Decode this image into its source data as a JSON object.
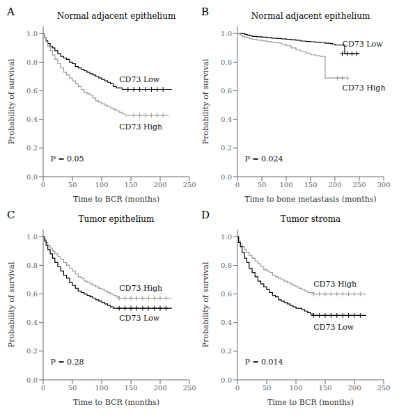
{
  "chart_data": [
    {
      "type": "line",
      "panel_label": "A",
      "title": "Normal adjacent epithelium",
      "x_label": "Time to BCR (months)",
      "y_label": "Probability of survival",
      "annotations": [
        {
          "text": "P = 0.05"
        }
      ],
      "xlim": [
        0,
        250
      ],
      "xticks": [
        0,
        50,
        100,
        150,
        200,
        250
      ],
      "ylim": [
        0.0,
        1.05
      ],
      "yticks": [
        {
          "value": 0.0,
          "label": "0.0"
        },
        0.2,
        0.4,
        0.6,
        0.8,
        {
          "value": 1.0,
          "label": "1.0"
        }
      ],
      "series": [
        {
          "name": "CD73 Low",
          "color": "#000000",
          "line_style": "step",
          "marker": "+",
          "x": [
            0,
            2,
            5,
            8,
            12,
            16,
            20,
            25,
            30,
            35,
            40,
            45,
            50,
            55,
            60,
            65,
            70,
            75,
            80,
            85,
            90,
            95,
            100,
            105,
            110,
            115,
            120,
            125,
            130,
            135,
            140,
            150,
            160,
            170,
            180,
            190,
            200,
            215,
            220
          ],
          "values": [
            1.0,
            0.97,
            0.95,
            0.93,
            0.91,
            0.9,
            0.88,
            0.86,
            0.84,
            0.83,
            0.82,
            0.8,
            0.79,
            0.77,
            0.76,
            0.75,
            0.74,
            0.73,
            0.72,
            0.71,
            0.7,
            0.69,
            0.68,
            0.67,
            0.66,
            0.65,
            0.63,
            0.62,
            0.62,
            0.61,
            0.61,
            0.61,
            0.61,
            0.61,
            0.61,
            0.61,
            0.61,
            0.61,
            0.61
          ],
          "censor_x": [
            145,
            155,
            165,
            175,
            185,
            195,
            205
          ],
          "censor_y": [
            0.61,
            0.61,
            0.61,
            0.61,
            0.61,
            0.61,
            0.61
          ],
          "label_x": 130,
          "label_y": 0.68
        },
        {
          "name": "CD73 High",
          "color": "#999999",
          "line_style": "step",
          "marker": "+",
          "x": [
            0,
            2,
            5,
            8,
            12,
            16,
            20,
            25,
            30,
            35,
            40,
            45,
            50,
            55,
            60,
            65,
            70,
            75,
            80,
            85,
            90,
            95,
            100,
            105,
            110,
            115,
            120,
            125,
            130,
            135,
            140,
            145,
            150,
            155,
            160,
            170,
            180,
            200,
            215
          ],
          "values": [
            1.0,
            0.97,
            0.94,
            0.91,
            0.88,
            0.85,
            0.82,
            0.79,
            0.76,
            0.73,
            0.71,
            0.69,
            0.67,
            0.65,
            0.63,
            0.61,
            0.59,
            0.58,
            0.57,
            0.55,
            0.53,
            0.52,
            0.51,
            0.5,
            0.49,
            0.48,
            0.47,
            0.46,
            0.45,
            0.44,
            0.43,
            0.43,
            0.43,
            0.43,
            0.43,
            0.43,
            0.43,
            0.43,
            0.43
          ],
          "censor_x": [
            155,
            165,
            175,
            185,
            195,
            205
          ],
          "censor_y": [
            0.43,
            0.43,
            0.43,
            0.43,
            0.43,
            0.43
          ],
          "label_x": 130,
          "label_y": 0.35
        }
      ]
    },
    {
      "type": "line",
      "panel_label": "B",
      "title": "Normal adjacent epithelium",
      "x_label": "Time to bone metastasis (months)",
      "y_label": "Probability of survival",
      "annotations": [
        {
          "text": "P = 0.024"
        }
      ],
      "xlim": [
        0,
        300
      ],
      "xticks": [
        0,
        50,
        100,
        150,
        200,
        250,
        300
      ],
      "ylim": [
        0.0,
        1.05
      ],
      "yticks": [
        {
          "value": 0.0,
          "label": "0.0"
        },
        0.2,
        0.4,
        0.6,
        0.8,
        {
          "value": 1.0,
          "label": "1.0"
        }
      ],
      "series": [
        {
          "name": "CD73 Low",
          "color": "#000000",
          "line_style": "step",
          "marker": "+",
          "x": [
            0,
            5,
            10,
            15,
            20,
            25,
            30,
            40,
            50,
            60,
            70,
            80,
            90,
            100,
            110,
            120,
            130,
            140,
            150,
            160,
            170,
            180,
            190,
            195,
            200,
            210,
            220,
            230,
            240,
            250
          ],
          "values": [
            1.0,
            1.0,
            1.0,
            0.995,
            0.99,
            0.985,
            0.98,
            0.978,
            0.975,
            0.972,
            0.968,
            0.966,
            0.963,
            0.96,
            0.957,
            0.953,
            0.948,
            0.945,
            0.943,
            0.94,
            0.937,
            0.933,
            0.93,
            0.926,
            0.92,
            0.92,
            0.86,
            0.86,
            0.86,
            0.86
          ],
          "censor_x": [
            215,
            225,
            235,
            245
          ],
          "censor_y": [
            0.86,
            0.86,
            0.86,
            0.86
          ],
          "label_x": 215,
          "label_y": 0.93
        },
        {
          "name": "CD73 High",
          "color": "#999999",
          "line_style": "step",
          "marker": "+",
          "x": [
            0,
            5,
            10,
            15,
            20,
            25,
            30,
            40,
            50,
            60,
            70,
            80,
            90,
            100,
            110,
            120,
            130,
            140,
            150,
            160,
            165,
            170,
            175,
            180,
            185,
            190,
            195,
            200,
            210,
            220
          ],
          "values": [
            1.0,
            0.99,
            0.98,
            0.975,
            0.97,
            0.965,
            0.96,
            0.955,
            0.95,
            0.945,
            0.94,
            0.935,
            0.925,
            0.915,
            0.9,
            0.886,
            0.875,
            0.863,
            0.852,
            0.845,
            0.845,
            0.84,
            0.84,
            0.69,
            0.69,
            0.69,
            0.69,
            0.69,
            0.69,
            0.69
          ],
          "censor_x": [
            205,
            215,
            225
          ],
          "censor_y": [
            0.69,
            0.69,
            0.69
          ],
          "label_x": 215,
          "label_y": 0.62
        }
      ]
    },
    {
      "type": "line",
      "panel_label": "C",
      "title": "Tumor epithelium",
      "x_label": "Time to BCR (months)",
      "y_label": "Probability of survival",
      "annotations": [
        {
          "text": "P = 0.28"
        }
      ],
      "xlim": [
        0,
        250
      ],
      "xticks": [
        0,
        50,
        100,
        150,
        200,
        250
      ],
      "ylim": [
        0.0,
        1.05
      ],
      "yticks": [
        {
          "value": 0.0,
          "label": "0.0"
        },
        0.2,
        0.4,
        0.6,
        0.8,
        {
          "value": 1.0,
          "label": "1.0"
        }
      ],
      "series": [
        {
          "name": "CD73 High",
          "color": "#999999",
          "line_style": "step",
          "marker": "+",
          "x": [
            0,
            2,
            5,
            8,
            12,
            16,
            20,
            25,
            30,
            35,
            40,
            45,
            50,
            55,
            60,
            65,
            70,
            75,
            80,
            85,
            90,
            95,
            100,
            105,
            110,
            115,
            120,
            125,
            130,
            135,
            140,
            145,
            150,
            160,
            170,
            180,
            200,
            220
          ],
          "values": [
            1.0,
            0.98,
            0.96,
            0.94,
            0.92,
            0.9,
            0.88,
            0.86,
            0.84,
            0.82,
            0.8,
            0.78,
            0.76,
            0.74,
            0.72,
            0.71,
            0.69,
            0.68,
            0.67,
            0.66,
            0.65,
            0.64,
            0.63,
            0.62,
            0.61,
            0.6,
            0.59,
            0.58,
            0.57,
            0.57,
            0.57,
            0.57,
            0.57,
            0.57,
            0.57,
            0.57,
            0.57,
            0.57
          ],
          "censor_x": [
            130,
            140,
            150,
            160,
            170,
            180,
            190,
            200,
            210
          ],
          "censor_y": [
            0.57,
            0.57,
            0.57,
            0.57,
            0.57,
            0.57,
            0.57,
            0.57,
            0.57
          ],
          "label_x": 130,
          "label_y": 0.64
        },
        {
          "name": "CD73 Low",
          "color": "#000000",
          "line_style": "step",
          "marker": "+",
          "x": [
            0,
            2,
            5,
            8,
            12,
            16,
            20,
            25,
            30,
            35,
            40,
            45,
            50,
            55,
            60,
            65,
            70,
            75,
            80,
            85,
            90,
            95,
            100,
            105,
            110,
            115,
            120,
            125,
            130,
            135,
            140,
            145,
            150,
            160,
            170,
            180,
            200,
            220
          ],
          "values": [
            1.0,
            0.97,
            0.94,
            0.91,
            0.88,
            0.85,
            0.82,
            0.79,
            0.76,
            0.73,
            0.71,
            0.68,
            0.66,
            0.64,
            0.62,
            0.61,
            0.6,
            0.59,
            0.58,
            0.57,
            0.56,
            0.55,
            0.54,
            0.53,
            0.52,
            0.51,
            0.5,
            0.5,
            0.5,
            0.5,
            0.5,
            0.5,
            0.5,
            0.5,
            0.5,
            0.5,
            0.5,
            0.5
          ],
          "censor_x": [
            130,
            140,
            150,
            160,
            170,
            180,
            190,
            200,
            210
          ],
          "censor_y": [
            0.5,
            0.5,
            0.5,
            0.5,
            0.5,
            0.5,
            0.5,
            0.5,
            0.5
          ],
          "label_x": 130,
          "label_y": 0.43
        }
      ]
    },
    {
      "type": "line",
      "panel_label": "D",
      "title": "Tumor stroma",
      "x_label": "Time to BCR (months)",
      "y_label": "Probability of survival",
      "annotations": [
        {
          "text": "P = 0.014"
        }
      ],
      "xlim": [
        0,
        250
      ],
      "xticks": [
        0,
        50,
        100,
        150,
        200,
        250
      ],
      "ylim": [
        0.0,
        1.05
      ],
      "yticks": [
        {
          "value": 0.0,
          "label": "0.0"
        },
        0.2,
        0.4,
        0.6,
        0.8,
        {
          "value": 1.0,
          "label": "1.0"
        }
      ],
      "series": [
        {
          "name": "CD73 High",
          "color": "#999999",
          "line_style": "step",
          "marker": "+",
          "x": [
            0,
            2,
            5,
            8,
            12,
            16,
            20,
            25,
            30,
            35,
            40,
            45,
            50,
            55,
            60,
            65,
            70,
            75,
            80,
            85,
            90,
            95,
            100,
            105,
            110,
            115,
            120,
            125,
            130,
            135,
            140,
            145,
            150,
            160,
            170,
            180,
            200,
            220
          ],
          "values": [
            1.0,
            0.97,
            0.95,
            0.93,
            0.91,
            0.89,
            0.87,
            0.85,
            0.83,
            0.81,
            0.79,
            0.77,
            0.76,
            0.75,
            0.73,
            0.72,
            0.71,
            0.7,
            0.69,
            0.68,
            0.67,
            0.66,
            0.65,
            0.64,
            0.63,
            0.62,
            0.61,
            0.61,
            0.6,
            0.6,
            0.6,
            0.6,
            0.6,
            0.6,
            0.6,
            0.6,
            0.6,
            0.6
          ],
          "censor_x": [
            130,
            140,
            150,
            160,
            170,
            180,
            190,
            200,
            210
          ],
          "censor_y": [
            0.6,
            0.6,
            0.6,
            0.6,
            0.6,
            0.6,
            0.6,
            0.6,
            0.6
          ],
          "label_x": 130,
          "label_y": 0.67
        },
        {
          "name": "CD73 Low",
          "color": "#000000",
          "line_style": "step",
          "marker": "+",
          "x": [
            0,
            2,
            5,
            8,
            12,
            16,
            20,
            25,
            30,
            35,
            40,
            45,
            50,
            55,
            60,
            65,
            70,
            75,
            80,
            85,
            90,
            95,
            100,
            105,
            110,
            115,
            120,
            125,
            130,
            135,
            140,
            145,
            150,
            160,
            170,
            180,
            200,
            220
          ],
          "values": [
            1.0,
            0.96,
            0.93,
            0.89,
            0.85,
            0.82,
            0.78,
            0.75,
            0.72,
            0.69,
            0.67,
            0.65,
            0.63,
            0.61,
            0.59,
            0.58,
            0.56,
            0.55,
            0.54,
            0.53,
            0.52,
            0.51,
            0.5,
            0.5,
            0.49,
            0.48,
            0.47,
            0.46,
            0.45,
            0.45,
            0.45,
            0.45,
            0.45,
            0.45,
            0.45,
            0.45,
            0.45,
            0.45
          ],
          "censor_x": [
            130,
            140,
            150,
            160,
            170,
            180,
            190,
            200,
            210
          ],
          "censor_y": [
            0.45,
            0.45,
            0.45,
            0.45,
            0.45,
            0.45,
            0.45,
            0.45,
            0.45
          ],
          "label_x": 130,
          "label_y": 0.37
        }
      ]
    }
  ]
}
